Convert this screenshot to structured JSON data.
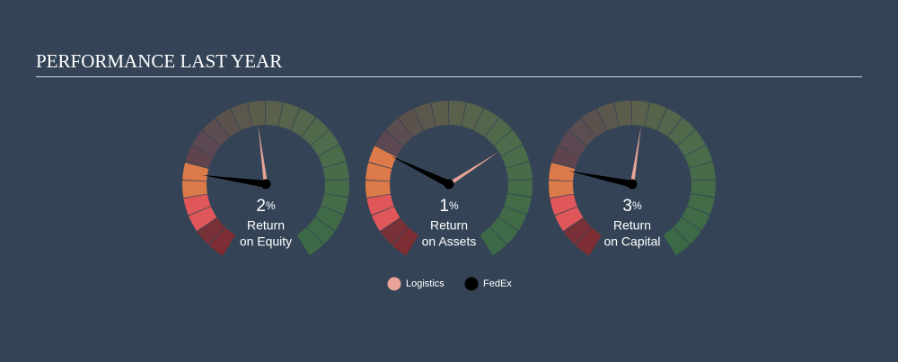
{
  "chart_data": {
    "type": "gauge",
    "title": "PERFORMANCE LAST YEAR",
    "categories": [
      [
        "Return",
        "on Equity"
      ],
      [
        "Return",
        "on Assets"
      ],
      [
        "Return",
        "on Capital"
      ]
    ],
    "unit": "%",
    "ylim": [
      [
        -7,
        33
      ],
      [
        -2.5,
        9.8
      ],
      [
        -2.7,
        21.3
      ]
    ],
    "series": [
      {
        "name": "Logistics",
        "color": "#e8a597",
        "values": [
          12,
          6,
          10
        ]
      },
      {
        "name": "FedEx",
        "color": "#000000",
        "values": [
          2,
          1,
          3
        ]
      }
    ]
  }
}
